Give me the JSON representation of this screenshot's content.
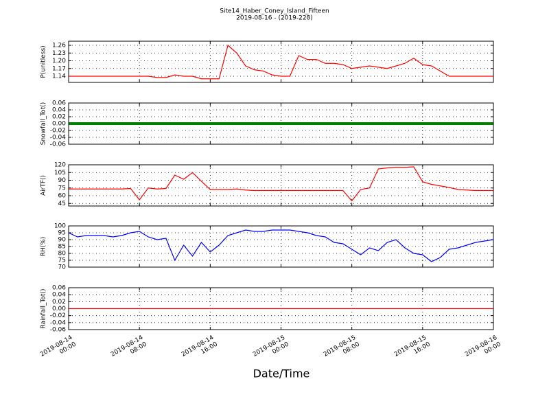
{
  "chart_data": [
    {
      "type": "line",
      "title": "Site14_Haber_Coney_Island_Fifteen",
      "subtitle": "2019-08-16 - (2019-228)",
      "ylabel": "P(unitless)",
      "xlim": [
        "2019-08-14 00:00",
        "2019-08-16 00:00"
      ],
      "x": [
        "2019-08-14 00:00",
        "2019-08-14 01:00",
        "2019-08-14 02:00",
        "2019-08-14 03:00",
        "2019-08-14 04:00",
        "2019-08-14 05:00",
        "2019-08-14 06:00",
        "2019-08-14 07:00",
        "2019-08-14 08:00",
        "2019-08-14 09:00",
        "2019-08-14 10:00",
        "2019-08-14 11:00",
        "2019-08-14 12:00",
        "2019-08-14 13:00",
        "2019-08-14 14:00",
        "2019-08-14 15:00",
        "2019-08-14 16:00",
        "2019-08-14 17:00",
        "2019-08-14 18:00",
        "2019-08-14 19:00",
        "2019-08-14 20:00",
        "2019-08-14 21:00",
        "2019-08-14 22:00",
        "2019-08-14 23:00",
        "2019-08-15 00:00",
        "2019-08-15 01:00",
        "2019-08-15 02:00",
        "2019-08-15 03:00",
        "2019-08-15 04:00",
        "2019-08-15 05:00",
        "2019-08-15 06:00",
        "2019-08-15 07:00",
        "2019-08-15 08:00",
        "2019-08-15 09:00",
        "2019-08-15 10:00",
        "2019-08-15 11:00",
        "2019-08-15 12:00",
        "2019-08-15 13:00",
        "2019-08-15 14:00",
        "2019-08-15 15:00",
        "2019-08-15 16:00",
        "2019-08-15 17:00",
        "2019-08-15 18:00",
        "2019-08-15 19:00",
        "2019-08-15 20:00",
        "2019-08-15 21:00",
        "2019-08-15 22:00",
        "2019-08-15 23:00",
        "2019-08-16 00:00"
      ],
      "series": [
        {
          "color": "#ff0000",
          "values": [
            1.14,
            1.14,
            1.14,
            1.14,
            1.14,
            1.14,
            1.14,
            1.14,
            1.14,
            1.14,
            1.135,
            1.135,
            1.145,
            1.14,
            1.14,
            1.13,
            1.13,
            1.13,
            1.26,
            1.23,
            1.18,
            1.165,
            1.16,
            1.145,
            1.14,
            1.14,
            1.22,
            1.205,
            1.205,
            1.19,
            1.19,
            1.185,
            1.17,
            1.175,
            1.18,
            1.175,
            1.17,
            1.18,
            1.19,
            1.21,
            1.185,
            1.18,
            1.16,
            1.14,
            1.14,
            1.14,
            1.14,
            1.14,
            1.14
          ]
        }
      ],
      "ylim": [
        1.116,
        1.276
      ],
      "yticks": [
        1.14,
        1.17,
        {
          "value": 1.2,
          "label": "1.20"
        },
        1.23,
        1.26
      ],
      "grid": true
    },
    {
      "type": "line",
      "ylabel": "Snowfall_Tot()",
      "xlim": [
        "2019-08-14 00:00",
        "2019-08-16 00:00"
      ],
      "x": [
        "2019-08-14 00:00",
        "2019-08-16 00:00"
      ],
      "series": [
        {
          "color": "#008000",
          "values": [
            0,
            0
          ]
        }
      ],
      "ylim": [
        -0.06,
        0.06
      ],
      "yticks": [
        {
          "value": -0.06,
          "label": "-0.06"
        },
        {
          "value": -0.04,
          "label": "-0.04"
        },
        {
          "value": -0.02,
          "label": "-0.02"
        },
        {
          "value": 0,
          "label": "0.00"
        },
        {
          "value": 0.02,
          "label": "0.02"
        },
        {
          "value": 0.04,
          "label": "0.04"
        },
        {
          "value": 0.06,
          "label": "0.06"
        }
      ],
      "grid": true
    },
    {
      "type": "line",
      "ylabel": "AirTF()",
      "xlim": [
        "2019-08-14 00:00",
        "2019-08-16 00:00"
      ],
      "x": [
        "2019-08-14 00:00",
        "2019-08-14 01:00",
        "2019-08-14 02:00",
        "2019-08-14 03:00",
        "2019-08-14 04:00",
        "2019-08-14 05:00",
        "2019-08-14 06:00",
        "2019-08-14 07:00",
        "2019-08-14 08:00",
        "2019-08-14 09:00",
        "2019-08-14 10:00",
        "2019-08-14 11:00",
        "2019-08-14 12:00",
        "2019-08-14 13:00",
        "2019-08-14 14:00",
        "2019-08-14 15:00",
        "2019-08-14 16:00",
        "2019-08-14 17:00",
        "2019-08-14 18:00",
        "2019-08-14 19:00",
        "2019-08-14 20:00",
        "2019-08-14 21:00",
        "2019-08-14 22:00",
        "2019-08-14 23:00",
        "2019-08-15 00:00",
        "2019-08-15 01:00",
        "2019-08-15 02:00",
        "2019-08-15 03:00",
        "2019-08-15 04:00",
        "2019-08-15 05:00",
        "2019-08-15 06:00",
        "2019-08-15 07:00",
        "2019-08-15 08:00",
        "2019-08-15 09:00",
        "2019-08-15 10:00",
        "2019-08-15 11:00",
        "2019-08-15 12:00",
        "2019-08-15 13:00",
        "2019-08-15 14:00",
        "2019-08-15 15:00",
        "2019-08-15 16:00",
        "2019-08-15 17:00",
        "2019-08-15 18:00",
        "2019-08-15 19:00",
        "2019-08-15 20:00",
        "2019-08-15 21:00",
        "2019-08-15 22:00",
        "2019-08-15 23:00",
        "2019-08-16 00:00"
      ],
      "series": [
        {
          "color": "#ff0000",
          "values": [
            73,
            73,
            73,
            73,
            73,
            73,
            73,
            74,
            52,
            75,
            73,
            74,
            100,
            92,
            105,
            88,
            72,
            72,
            72,
            73,
            71,
            70,
            70,
            70,
            70,
            70,
            70,
            70,
            70,
            70,
            70,
            70,
            50,
            72,
            75,
            112,
            114,
            115,
            115,
            116,
            87,
            82,
            79,
            76,
            72,
            71,
            70,
            70,
            70
          ]
        }
      ],
      "ylim": [
        40,
        120
      ],
      "yticks": [
        45,
        60,
        75,
        90,
        105,
        120
      ],
      "grid": true
    },
    {
      "type": "line",
      "ylabel": "RH(%)",
      "xlim": [
        "2019-08-14 00:00",
        "2019-08-16 00:00"
      ],
      "x": [
        "2019-08-14 00:00",
        "2019-08-14 01:00",
        "2019-08-14 02:00",
        "2019-08-14 03:00",
        "2019-08-14 04:00",
        "2019-08-14 05:00",
        "2019-08-14 06:00",
        "2019-08-14 07:00",
        "2019-08-14 08:00",
        "2019-08-14 09:00",
        "2019-08-14 10:00",
        "2019-08-14 11:00",
        "2019-08-14 12:00",
        "2019-08-14 13:00",
        "2019-08-14 14:00",
        "2019-08-14 15:00",
        "2019-08-14 16:00",
        "2019-08-14 17:00",
        "2019-08-14 18:00",
        "2019-08-14 19:00",
        "2019-08-14 20:00",
        "2019-08-14 21:00",
        "2019-08-14 22:00",
        "2019-08-14 23:00",
        "2019-08-15 00:00",
        "2019-08-15 01:00",
        "2019-08-15 02:00",
        "2019-08-15 03:00",
        "2019-08-15 04:00",
        "2019-08-15 05:00",
        "2019-08-15 06:00",
        "2019-08-15 07:00",
        "2019-08-15 08:00",
        "2019-08-15 09:00",
        "2019-08-15 10:00",
        "2019-08-15 11:00",
        "2019-08-15 12:00",
        "2019-08-15 13:00",
        "2019-08-15 14:00",
        "2019-08-15 15:00",
        "2019-08-15 16:00",
        "2019-08-15 17:00",
        "2019-08-15 18:00",
        "2019-08-15 19:00",
        "2019-08-15 20:00",
        "2019-08-15 21:00",
        "2019-08-15 22:00",
        "2019-08-15 23:00",
        "2019-08-16 00:00"
      ],
      "series": [
        {
          "color": "#0000ff",
          "values": [
            95,
            92,
            93,
            93,
            93,
            92,
            93,
            95,
            96,
            92,
            90,
            91,
            75,
            86,
            78,
            88,
            81,
            86,
            93,
            95,
            97,
            96,
            96,
            97,
            97,
            97,
            96,
            95,
            93,
            92,
            88,
            87,
            83,
            79,
            84,
            82,
            88,
            90,
            84,
            80,
            79,
            74,
            77,
            83,
            84,
            86,
            88,
            89,
            90
          ]
        }
      ],
      "ylim": [
        70,
        100
      ],
      "yticks": [
        70,
        75,
        80,
        85,
        90,
        95,
        100
      ],
      "grid": true
    },
    {
      "type": "line",
      "ylabel": "Rainfall_Tot()",
      "xlabel": "Date/Time",
      "xlim": [
        "2019-08-14 00:00",
        "2019-08-16 00:00"
      ],
      "x": [
        "2019-08-14 00:00",
        "2019-08-16 00:00"
      ],
      "series": [
        {
          "color": "#ff0000",
          "values": [
            0,
            0
          ]
        }
      ],
      "ylim": [
        -0.06,
        0.06
      ],
      "yticks": [
        {
          "value": -0.06,
          "label": "-0.06"
        },
        {
          "value": -0.04,
          "label": "-0.04"
        },
        {
          "value": -0.02,
          "label": "-0.02"
        },
        {
          "value": 0,
          "label": "0.00"
        },
        {
          "value": 0.02,
          "label": "0.02"
        },
        {
          "value": 0.04,
          "label": "0.04"
        },
        {
          "value": 0.06,
          "label": "0.06"
        }
      ],
      "xticks": [
        {
          "value": "2019-08-14 00:00",
          "label": "2019-08-14\n00:00"
        },
        {
          "value": "2019-08-14 08:00",
          "label": "2019-08-14\n08:00"
        },
        {
          "value": "2019-08-14 16:00",
          "label": "2019-08-14\n16:00"
        },
        {
          "value": "2019-08-15 00:00",
          "label": "2019-08-15\n00:00"
        },
        {
          "value": "2019-08-15 08:00",
          "label": "2019-08-15\n08:00"
        },
        {
          "value": "2019-08-15 16:00",
          "label": "2019-08-15\n16:00"
        },
        {
          "value": "2019-08-16 00:00",
          "label": "2019-08-16\n00:00"
        }
      ],
      "grid": true
    }
  ]
}
